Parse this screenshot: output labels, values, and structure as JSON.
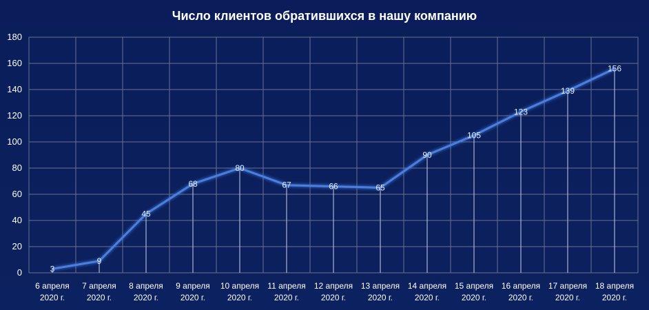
{
  "chart_data": {
    "type": "line",
    "title": "Число клиентов обратившихся в нашу компанию",
    "xlabel": "",
    "ylabel": "",
    "ylim": [
      0,
      180
    ],
    "yticks": [
      0,
      20,
      40,
      60,
      80,
      100,
      120,
      140,
      160,
      180
    ],
    "grid": true,
    "categories": [
      [
        "6 апреля",
        "2020 г."
      ],
      [
        "7 апреля",
        "2020 г."
      ],
      [
        "8 апреля",
        "2020 г."
      ],
      [
        "9 апреля",
        "2020 г."
      ],
      [
        "10 апреля",
        "2020 г."
      ],
      [
        "11 апреля",
        "2020 г."
      ],
      [
        "12 апреля",
        "2020 г."
      ],
      [
        "13 апреля",
        "2020 г."
      ],
      [
        "14 апреля",
        "2020 г."
      ],
      [
        "15 апреля",
        "2020 г."
      ],
      [
        "16 апреля",
        "2020 г."
      ],
      [
        "17 апреля",
        "2020 г."
      ],
      [
        "18 апреля",
        "2020 г."
      ]
    ],
    "values": [
      3,
      9,
      45,
      68,
      80,
      67,
      66,
      65,
      90,
      105,
      123,
      139,
      156
    ],
    "colors": {
      "background": "#0b1f5c",
      "line": "#4a7fe0",
      "grid": "#6a7290",
      "text": "#ffffff"
    }
  }
}
